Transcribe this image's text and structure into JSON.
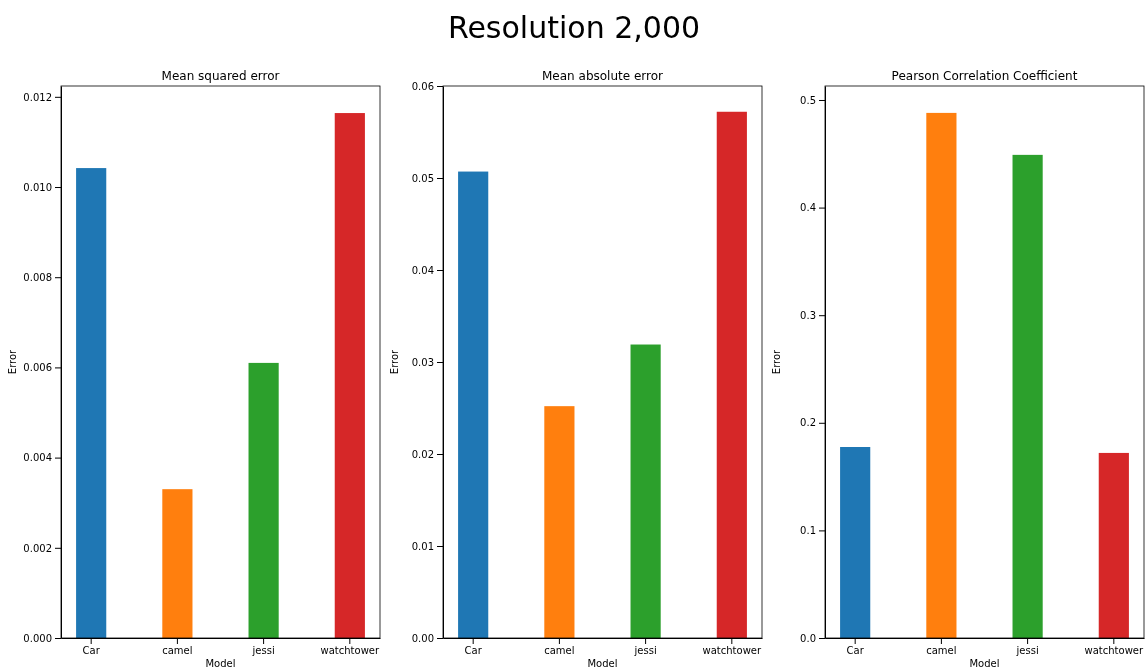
{
  "chart_data": [
    {
      "type": "bar",
      "title": "Mean squared error",
      "xlabel": "Model",
      "ylabel": "Error",
      "annotations": [
        "Resolution 2,000"
      ],
      "categories": [
        "Car",
        "camel",
        "jessi",
        "watchtower"
      ],
      "values": [
        0.01042,
        0.0033,
        0.0061,
        0.01164
      ],
      "colors": [
        "#1f77b4",
        "#ff7f0e",
        "#2ca02c",
        "#d62728"
      ],
      "ylim": [
        0,
        0.01224
      ],
      "yticks": [
        {
          "value": 0,
          "label": "0.000"
        },
        {
          "value": 0.002,
          "label": "0.002"
        },
        {
          "value": 0.004,
          "label": "0.004"
        },
        {
          "value": 0.006,
          "label": "0.006"
        },
        {
          "value": 0.008,
          "label": "0.008"
        },
        {
          "value": 0.01,
          "label": "0.010"
        },
        {
          "value": 0.012,
          "label": "0.012"
        }
      ]
    },
    {
      "type": "bar",
      "title": "Mean absolute error",
      "xlabel": "Model",
      "ylabel": "Error",
      "categories": [
        "Car",
        "camel",
        "jessi",
        "watchtower"
      ],
      "values": [
        0.0507,
        0.0252,
        0.0319,
        0.0572
      ],
      "colors": [
        "#1f77b4",
        "#ff7f0e",
        "#2ca02c",
        "#d62728"
      ],
      "ylim": [
        0,
        0.06
      ],
      "yticks": [
        {
          "value": 0,
          "label": "0.00"
        },
        {
          "value": 0.01,
          "label": "0.01"
        },
        {
          "value": 0.02,
          "label": "0.02"
        },
        {
          "value": 0.03,
          "label": "0.03"
        },
        {
          "value": 0.04,
          "label": "0.04"
        },
        {
          "value": 0.05,
          "label": "0.05"
        },
        {
          "value": 0.06,
          "label": "0.06"
        }
      ]
    },
    {
      "type": "bar",
      "title": "Pearson Correlation Coefficient",
      "xlabel": "Model",
      "ylabel": "Error",
      "categories": [
        "Car",
        "camel",
        "jessi",
        "watchtower"
      ],
      "values": [
        0.1775,
        0.488,
        0.449,
        0.172
      ],
      "colors": [
        "#1f77b4",
        "#ff7f0e",
        "#2ca02c",
        "#d62728"
      ],
      "ylim": [
        0,
        0.513
      ],
      "yticks": [
        {
          "value": 0,
          "label": "0.0"
        },
        {
          "value": 0.1,
          "label": "0.1"
        },
        {
          "value": 0.2,
          "label": "0.2"
        },
        {
          "value": 0.3,
          "label": "0.3"
        },
        {
          "value": 0.4,
          "label": "0.4"
        },
        {
          "value": 0.5,
          "label": "0.5"
        }
      ]
    }
  ]
}
